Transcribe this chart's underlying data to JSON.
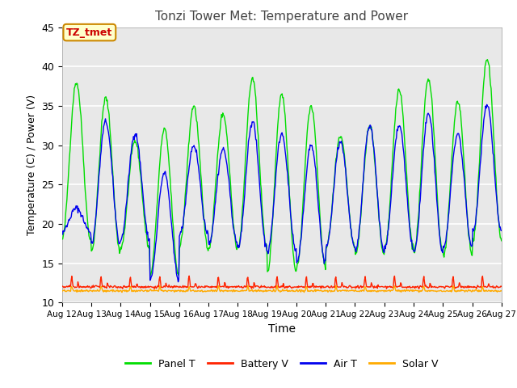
{
  "title": "Tonzi Tower Met: Temperature and Power",
  "xlabel": "Time",
  "ylabel": "Temperature (C) / Power (V)",
  "ylim": [
    10,
    45
  ],
  "yticks": [
    10,
    15,
    20,
    25,
    30,
    35,
    40,
    45
  ],
  "annotation_text": "TZ_tmet",
  "annotation_bg": "#ffffcc",
  "annotation_border": "#cc8800",
  "annotation_text_color": "#cc0000",
  "legend_entries": [
    "Panel T",
    "Battery V",
    "Air T",
    "Solar V"
  ],
  "legend_colors": [
    "#00dd00",
    "#ff2200",
    "#0000ee",
    "#ffaa00"
  ],
  "bg_color": "#e8e8e8",
  "grid_color": "#ffffff",
  "panel_t_color": "#00dd00",
  "battery_v_color": "#ff2200",
  "air_t_color": "#0000ee",
  "solar_v_color": "#ffaa00",
  "n_days": 15,
  "pts_per_day": 48,
  "panel_peaks": [
    38,
    36,
    30.5,
    32,
    35,
    34,
    38.5,
    36.5,
    35,
    31,
    32.5,
    37,
    38.5,
    35.5,
    41
  ],
  "panel_troughs": [
    18,
    16.5,
    17,
    13.5,
    17,
    17,
    17,
    14,
    14.5,
    17,
    16,
    17,
    16.5,
    16,
    18
  ],
  "air_peaks": [
    22,
    33,
    31.5,
    26.5,
    30,
    29.5,
    33,
    31.5,
    30,
    30.5,
    32.5,
    32.5,
    34,
    31.5,
    35
  ],
  "air_troughs": [
    19,
    17.5,
    18,
    13,
    18.5,
    17.5,
    17,
    16.5,
    15,
    17,
    16.5,
    17,
    16.5,
    17,
    19
  ],
  "tick_labels": [
    "Aug 12",
    "Aug 13",
    "Aug 14",
    "Aug 15",
    "Aug 16",
    "Aug 17",
    "Aug 18",
    "Aug 19",
    "Aug 20",
    "Aug 21",
    "Aug 22",
    "Aug 23",
    "Aug 24",
    "Aug 25",
    "Aug 26",
    "Aug 27"
  ]
}
